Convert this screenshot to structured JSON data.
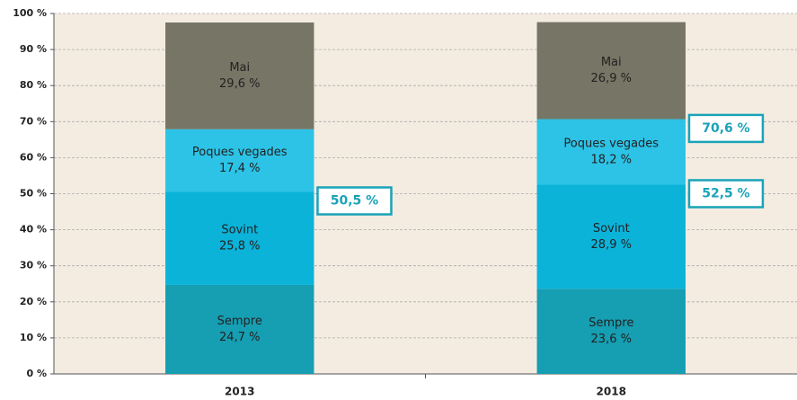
{
  "chart_data": {
    "type": "stacked-bar",
    "categories": [
      "2013",
      "2018"
    ],
    "series": [
      {
        "name": "Sempre",
        "color": "#169eb2",
        "values": [
          24.7,
          23.6
        ],
        "value_labels": [
          "24,7 %",
          "23,6 %"
        ]
      },
      {
        "name": "Sovint",
        "color": "#0bb3d9",
        "values": [
          25.8,
          28.9
        ],
        "value_labels": [
          "25,8 %",
          "28,9 %"
        ]
      },
      {
        "name": "Poques vegades",
        "color": "#2cc3e6",
        "values": [
          17.4,
          18.2
        ],
        "value_labels": [
          "17,4 %",
          "18,2 %"
        ]
      },
      {
        "name": "Mai",
        "color": "#777565",
        "values": [
          29.6,
          26.9
        ],
        "value_labels": [
          "29,6 %",
          "26,9 %"
        ]
      }
    ],
    "annotations": [
      {
        "x": "2013",
        "value": 50.5,
        "label": "50,5 %"
      },
      {
        "x": "2018",
        "value": 52.5,
        "label": "52,5 %"
      },
      {
        "x": "2018",
        "value": 70.6,
        "label": "70,6 %"
      }
    ],
    "ylim": [
      0,
      100
    ],
    "yticks": [
      {
        "value": 0,
        "label": "0 %"
      },
      {
        "value": 10,
        "label": "10 %"
      },
      {
        "value": 20,
        "label": "20 %"
      },
      {
        "value": 30,
        "label": "30 %"
      },
      {
        "value": 40,
        "label": "40 %"
      },
      {
        "value": 50,
        "label": "50 %"
      },
      {
        "value": 60,
        "label": "60 %"
      },
      {
        "value": 70,
        "label": "70 %"
      },
      {
        "value": 80,
        "label": "80 %"
      },
      {
        "value": 90,
        "label": "90 %"
      },
      {
        "value": 100,
        "label": "100 %"
      }
    ],
    "grid": true
  }
}
